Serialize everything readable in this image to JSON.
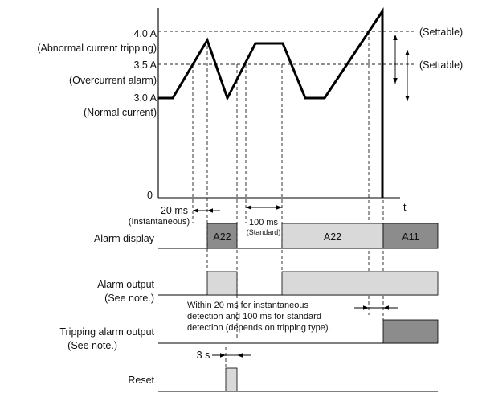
{
  "y_axis": {
    "tick_4_0": "4.0 A",
    "desc_4_0": "(Abnormal current tripping)",
    "tick_3_5": "3.5 A",
    "desc_3_5": "(Overcurrent alarm)",
    "tick_3_0": "3.0 A",
    "desc_3_0": "(Normal current)",
    "tick_0": "0"
  },
  "x_axis_label": "t",
  "settable_upper": "(Settable)",
  "settable_lower": "(Settable)",
  "timing_20ms": {
    "value": "20 ms",
    "mode": "(Instantaneous)"
  },
  "timing_100ms": {
    "value": "100 ms",
    "mode": "(Standard)"
  },
  "signals": {
    "alarm_display": "Alarm display",
    "alarm_output": "Alarm output",
    "alarm_output_note": "(See note.)",
    "tripping_alarm_output": "Tripping alarm output",
    "tripping_alarm_output_note": "(See note.)",
    "reset": "Reset"
  },
  "alarm_codes": {
    "first": "A22",
    "second": "A22",
    "trip": "A11"
  },
  "trip_note": [
    "Within 20 ms for instantaneous",
    "detection and 100 ms for standard",
    "detection (depends on tripping type)."
  ],
  "reset_interval": "3 s",
  "colors": {
    "alarm_light": "#d9d9d9",
    "alarm_dark": "#8c8c8c",
    "line": "#000000"
  }
}
